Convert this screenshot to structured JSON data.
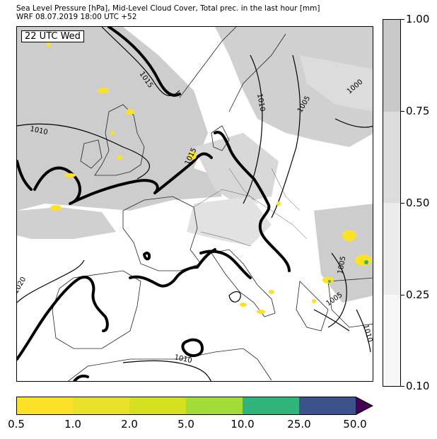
{
  "title": {
    "line1": "Sea Level Pressure [hPa], Mid-Level Cloud Cover, Total prec. in the last hour [mm]",
    "line2": "WRF 08.07.2019 18:00 UTC +52"
  },
  "map": {
    "time_label": "22 UTC Wed",
    "contour_labels": [
      {
        "id": "c1015-north",
        "text": "1015"
      },
      {
        "id": "c1015-benelux",
        "text": "1015"
      },
      {
        "id": "c1010-uk",
        "text": "1010"
      },
      {
        "id": "c1010-scand",
        "text": "1010"
      },
      {
        "id": "c1005-baltic",
        "text": "1005"
      },
      {
        "id": "c1000-ne",
        "text": "1000"
      },
      {
        "id": "c1020-iberia",
        "text": "1020"
      },
      {
        "id": "c1010-africa",
        "text": "1010"
      },
      {
        "id": "c1005-balkan",
        "text": "1005"
      },
      {
        "id": "c1005-greece",
        "text": "1005"
      },
      {
        "id": "c1010-turkey",
        "text": "1010"
      }
    ]
  },
  "cloud_colorbar": {
    "labels": [
      "1.00",
      "0.75",
      "0.50",
      "0.25",
      "0.10"
    ],
    "colors": [
      "#c8c8c8",
      "#dcdcdc",
      "#ececec",
      "#f7f7f7"
    ]
  },
  "precip_colorbar": {
    "labels": [
      "0.5",
      "1.0",
      "2.0",
      "5.0",
      "10.0",
      "25.0",
      "50.0"
    ],
    "colors": [
      "#fbe128",
      "#e9e22a",
      "#d4e020",
      "#a3db37",
      "#2fb47c",
      "#3b528b",
      "#440154"
    ]
  }
}
